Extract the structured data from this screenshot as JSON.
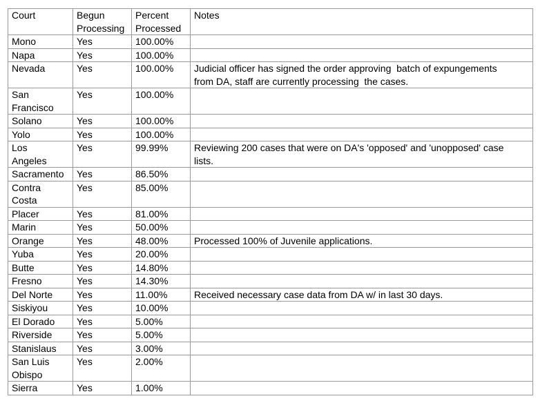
{
  "colors": {
    "table_border": "#999999",
    "text": "#000000",
    "background": "#ffffff"
  },
  "table": {
    "headers": [
      "Court",
      "Begun Processing",
      "Percent Processed",
      "Notes"
    ],
    "rows": [
      {
        "court": "Mono",
        "begun_processing": "Yes",
        "percent_processed": "100.00%",
        "notes": ""
      },
      {
        "court": "Napa",
        "begun_processing": "Yes",
        "percent_processed": "100.00%",
        "notes": ""
      },
      {
        "court": "Nevada",
        "begun_processing": "Yes",
        "percent_processed": "100.00%",
        "notes": "Judicial officer has signed the order approving  batch of expungements from DA, staff are currently processing  the cases."
      },
      {
        "court": "San Francisco",
        "begun_processing": "Yes",
        "percent_processed": "100.00%",
        "notes": ""
      },
      {
        "court": "Solano",
        "begun_processing": "Yes",
        "percent_processed": "100.00%",
        "notes": ""
      },
      {
        "court": "Yolo",
        "begun_processing": "Yes",
        "percent_processed": "100.00%",
        "notes": ""
      },
      {
        "court": "Los Angeles",
        "begun_processing": "Yes",
        "percent_processed": "99.99%",
        "notes": "Reviewing 200 cases that were on DA's 'opposed' and 'unopposed' case lists."
      },
      {
        "court": "Sacramento",
        "begun_processing": "Yes",
        "percent_processed": "86.50%",
        "notes": ""
      },
      {
        "court": "Contra Costa",
        "begun_processing": "Yes",
        "percent_processed": "85.00%",
        "notes": ""
      },
      {
        "court": "Placer",
        "begun_processing": "Yes",
        "percent_processed": "81.00%",
        "notes": ""
      },
      {
        "court": "Marin",
        "begun_processing": "Yes",
        "percent_processed": "50.00%",
        "notes": ""
      },
      {
        "court": "Orange",
        "begun_processing": "Yes",
        "percent_processed": "48.00%",
        "notes": "Processed 100% of Juvenile applications."
      },
      {
        "court": "Yuba",
        "begun_processing": "Yes",
        "percent_processed": "20.00%",
        "notes": ""
      },
      {
        "court": "Butte",
        "begun_processing": "Yes",
        "percent_processed": "14.80%",
        "notes": ""
      },
      {
        "court": "Fresno",
        "begun_processing": "Yes",
        "percent_processed": "14.30%",
        "notes": ""
      },
      {
        "court": "Del Norte",
        "begun_processing": "Yes",
        "percent_processed": "11.00%",
        "notes": "Received necessary case data from DA w/ in last 30 days."
      },
      {
        "court": "Siskiyou",
        "begun_processing": "Yes",
        "percent_processed": "10.00%",
        "notes": ""
      },
      {
        "court": "El Dorado",
        "begun_processing": "Yes",
        "percent_processed": "5.00%",
        "notes": ""
      },
      {
        "court": "Riverside",
        "begun_processing": "Yes",
        "percent_processed": "5.00%",
        "notes": ""
      },
      {
        "court": "Stanislaus",
        "begun_processing": "Yes",
        "percent_processed": "3.00%",
        "notes": ""
      },
      {
        "court": "San Luis Obispo",
        "begun_processing": "Yes",
        "percent_processed": "2.00%",
        "notes": ""
      },
      {
        "court": "Sierra",
        "begun_processing": "Yes",
        "percent_processed": "1.00%",
        "notes": ""
      }
    ]
  }
}
